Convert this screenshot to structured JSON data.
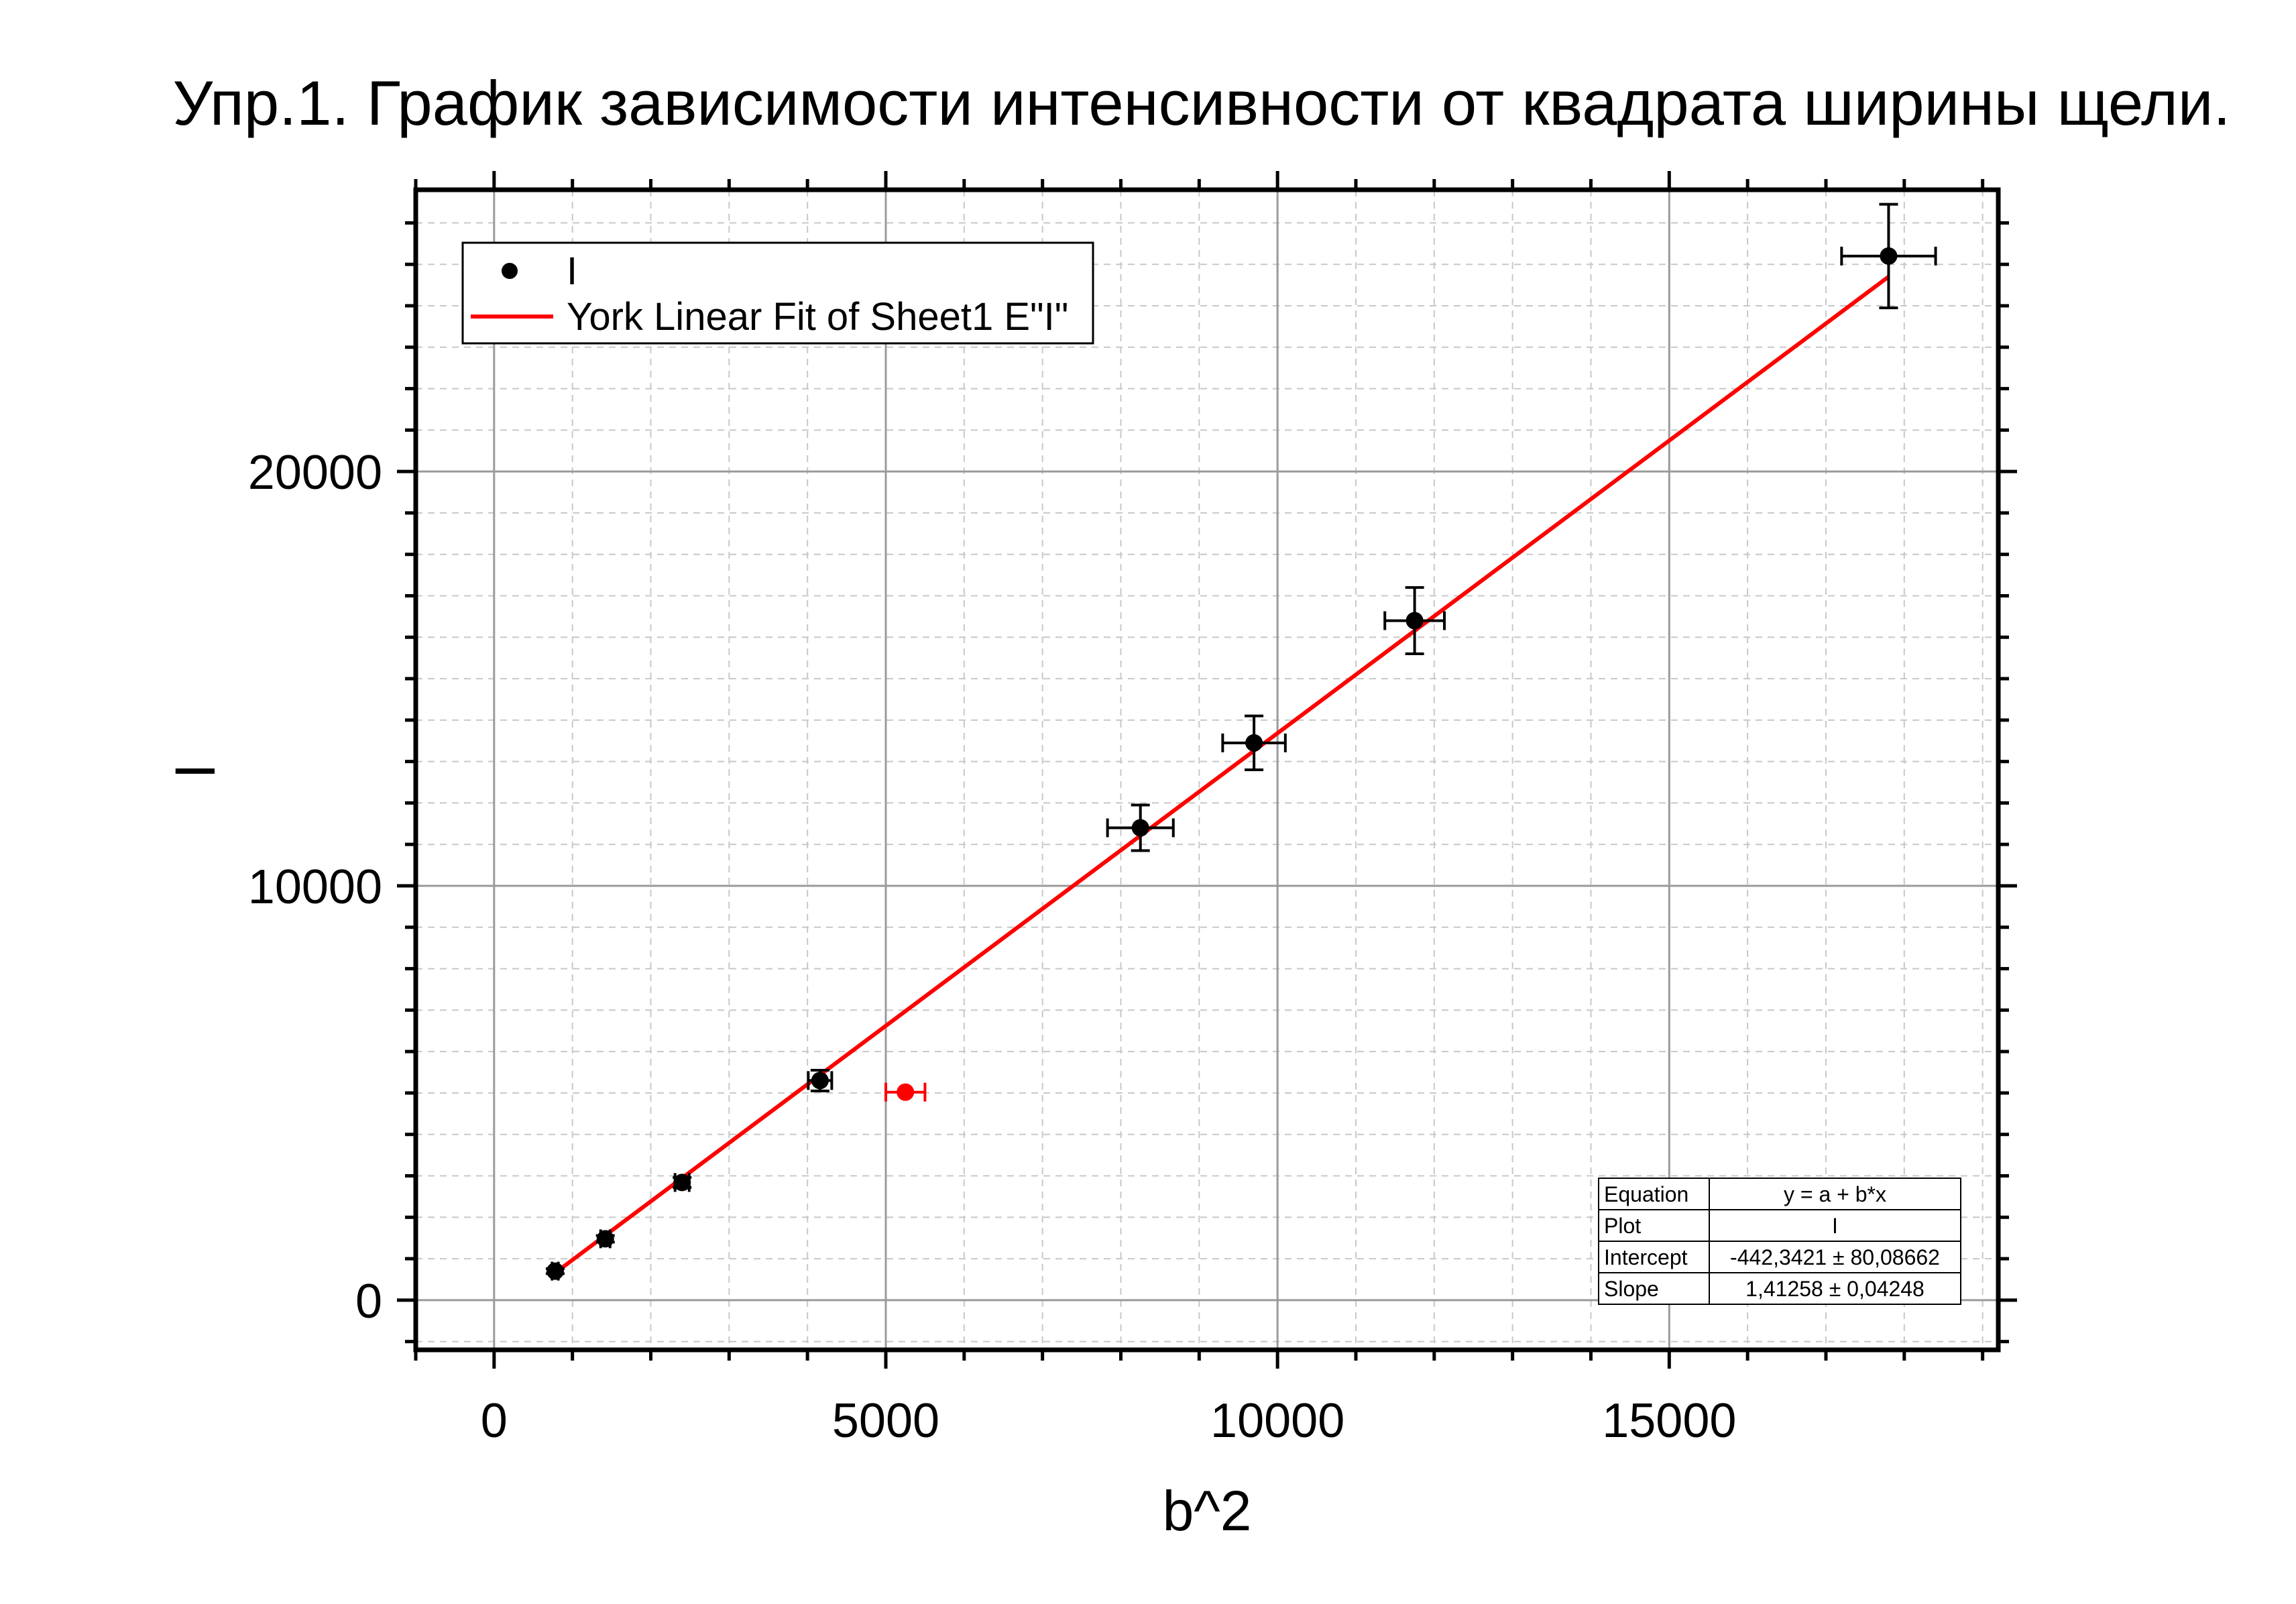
{
  "title": "Упр.1. График зависимости интенсивности от квадрата ширины щели.",
  "chart_data": {
    "type": "scatter",
    "xlabel": "b^2",
    "ylabel": "I",
    "xlim": [
      -1000,
      19200
    ],
    "ylim": [
      -1200,
      26800
    ],
    "x_ticks": [
      0,
      5000,
      10000,
      15000
    ],
    "y_ticks": [
      0,
      10000,
      20000
    ],
    "x_tick_labels": [
      "0",
      "5000",
      "10000",
      "15000"
    ],
    "y_tick_labels": [
      "0",
      "10000",
      "20000"
    ],
    "x_minor_step": 1000,
    "y_minor_step": 1000,
    "grid": true,
    "legend_position": "top-left",
    "series": [
      {
        "name": "I",
        "color": "#000000",
        "points": [
          {
            "x": 780,
            "y": 700,
            "xerr": 40,
            "yerr": 60
          },
          {
            "x": 1420,
            "y": 1480,
            "xerr": 60,
            "yerr": 80
          },
          {
            "x": 2400,
            "y": 2840,
            "xerr": 90,
            "yerr": 120
          },
          {
            "x": 4160,
            "y": 5300,
            "xerr": 150,
            "yerr": 250
          },
          {
            "x": 8250,
            "y": 11400,
            "xerr": 420,
            "yerr": 550
          },
          {
            "x": 9700,
            "y": 13450,
            "xerr": 400,
            "yerr": 650
          },
          {
            "x": 11750,
            "y": 16400,
            "xerr": 380,
            "yerr": 800
          },
          {
            "x": 17800,
            "y": 25200,
            "xerr": 600,
            "yerr": 1250
          }
        ]
      },
      {
        "name": "",
        "color": "#ff0000",
        "points": [
          {
            "x": 5250,
            "y": 5020,
            "xerr": 250,
            "yerr": 0
          }
        ]
      }
    ],
    "fit": {
      "legend_label": "York Linear Fit of Sheet1 E\"I\"",
      "color": "#ff0000",
      "intercept": -442.3421,
      "slope": 1.41258,
      "x_range": [
        780,
        17800
      ]
    },
    "stats_table": [
      {
        "label": "Equation",
        "value": "y = a + b*x"
      },
      {
        "label": "Plot",
        "value": "I"
      },
      {
        "label": "Intercept",
        "value": "-442,3421 ± 80,08662"
      },
      {
        "label": "Slope",
        "value": "1,41258 ± 0,04248"
      }
    ]
  }
}
